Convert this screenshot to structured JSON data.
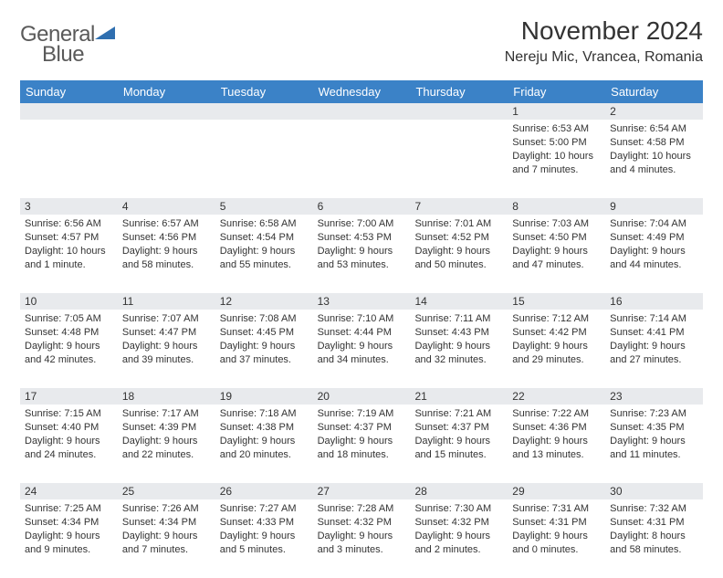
{
  "logo": {
    "word1": "General",
    "word2": "Blue",
    "tri_color": "#2f6fb0"
  },
  "header": {
    "month_title": "November 2024",
    "location": "Nereju Mic, Vrancea, Romania"
  },
  "colors": {
    "header_bg": "#3b82c7",
    "header_text": "#ffffff",
    "daynum_bg": "#e8eaed",
    "rule": "#7a8aa0",
    "text": "#333333"
  },
  "day_labels": [
    "Sunday",
    "Monday",
    "Tuesday",
    "Wednesday",
    "Thursday",
    "Friday",
    "Saturday"
  ],
  "weeks": [
    [
      {
        "n": "",
        "sr": "",
        "ss": "",
        "dl": ""
      },
      {
        "n": "",
        "sr": "",
        "ss": "",
        "dl": ""
      },
      {
        "n": "",
        "sr": "",
        "ss": "",
        "dl": ""
      },
      {
        "n": "",
        "sr": "",
        "ss": "",
        "dl": ""
      },
      {
        "n": "",
        "sr": "",
        "ss": "",
        "dl": ""
      },
      {
        "n": "1",
        "sr": "Sunrise: 6:53 AM",
        "ss": "Sunset: 5:00 PM",
        "dl": "Daylight: 10 hours and 7 minutes."
      },
      {
        "n": "2",
        "sr": "Sunrise: 6:54 AM",
        "ss": "Sunset: 4:58 PM",
        "dl": "Daylight: 10 hours and 4 minutes."
      }
    ],
    [
      {
        "n": "3",
        "sr": "Sunrise: 6:56 AM",
        "ss": "Sunset: 4:57 PM",
        "dl": "Daylight: 10 hours and 1 minute."
      },
      {
        "n": "4",
        "sr": "Sunrise: 6:57 AM",
        "ss": "Sunset: 4:56 PM",
        "dl": "Daylight: 9 hours and 58 minutes."
      },
      {
        "n": "5",
        "sr": "Sunrise: 6:58 AM",
        "ss": "Sunset: 4:54 PM",
        "dl": "Daylight: 9 hours and 55 minutes."
      },
      {
        "n": "6",
        "sr": "Sunrise: 7:00 AM",
        "ss": "Sunset: 4:53 PM",
        "dl": "Daylight: 9 hours and 53 minutes."
      },
      {
        "n": "7",
        "sr": "Sunrise: 7:01 AM",
        "ss": "Sunset: 4:52 PM",
        "dl": "Daylight: 9 hours and 50 minutes."
      },
      {
        "n": "8",
        "sr": "Sunrise: 7:03 AM",
        "ss": "Sunset: 4:50 PM",
        "dl": "Daylight: 9 hours and 47 minutes."
      },
      {
        "n": "9",
        "sr": "Sunrise: 7:04 AM",
        "ss": "Sunset: 4:49 PM",
        "dl": "Daylight: 9 hours and 44 minutes."
      }
    ],
    [
      {
        "n": "10",
        "sr": "Sunrise: 7:05 AM",
        "ss": "Sunset: 4:48 PM",
        "dl": "Daylight: 9 hours and 42 minutes."
      },
      {
        "n": "11",
        "sr": "Sunrise: 7:07 AM",
        "ss": "Sunset: 4:47 PM",
        "dl": "Daylight: 9 hours and 39 minutes."
      },
      {
        "n": "12",
        "sr": "Sunrise: 7:08 AM",
        "ss": "Sunset: 4:45 PM",
        "dl": "Daylight: 9 hours and 37 minutes."
      },
      {
        "n": "13",
        "sr": "Sunrise: 7:10 AM",
        "ss": "Sunset: 4:44 PM",
        "dl": "Daylight: 9 hours and 34 minutes."
      },
      {
        "n": "14",
        "sr": "Sunrise: 7:11 AM",
        "ss": "Sunset: 4:43 PM",
        "dl": "Daylight: 9 hours and 32 minutes."
      },
      {
        "n": "15",
        "sr": "Sunrise: 7:12 AM",
        "ss": "Sunset: 4:42 PM",
        "dl": "Daylight: 9 hours and 29 minutes."
      },
      {
        "n": "16",
        "sr": "Sunrise: 7:14 AM",
        "ss": "Sunset: 4:41 PM",
        "dl": "Daylight: 9 hours and 27 minutes."
      }
    ],
    [
      {
        "n": "17",
        "sr": "Sunrise: 7:15 AM",
        "ss": "Sunset: 4:40 PM",
        "dl": "Daylight: 9 hours and 24 minutes."
      },
      {
        "n": "18",
        "sr": "Sunrise: 7:17 AM",
        "ss": "Sunset: 4:39 PM",
        "dl": "Daylight: 9 hours and 22 minutes."
      },
      {
        "n": "19",
        "sr": "Sunrise: 7:18 AM",
        "ss": "Sunset: 4:38 PM",
        "dl": "Daylight: 9 hours and 20 minutes."
      },
      {
        "n": "20",
        "sr": "Sunrise: 7:19 AM",
        "ss": "Sunset: 4:37 PM",
        "dl": "Daylight: 9 hours and 18 minutes."
      },
      {
        "n": "21",
        "sr": "Sunrise: 7:21 AM",
        "ss": "Sunset: 4:37 PM",
        "dl": "Daylight: 9 hours and 15 minutes."
      },
      {
        "n": "22",
        "sr": "Sunrise: 7:22 AM",
        "ss": "Sunset: 4:36 PM",
        "dl": "Daylight: 9 hours and 13 minutes."
      },
      {
        "n": "23",
        "sr": "Sunrise: 7:23 AM",
        "ss": "Sunset: 4:35 PM",
        "dl": "Daylight: 9 hours and 11 minutes."
      }
    ],
    [
      {
        "n": "24",
        "sr": "Sunrise: 7:25 AM",
        "ss": "Sunset: 4:34 PM",
        "dl": "Daylight: 9 hours and 9 minutes."
      },
      {
        "n": "25",
        "sr": "Sunrise: 7:26 AM",
        "ss": "Sunset: 4:34 PM",
        "dl": "Daylight: 9 hours and 7 minutes."
      },
      {
        "n": "26",
        "sr": "Sunrise: 7:27 AM",
        "ss": "Sunset: 4:33 PM",
        "dl": "Daylight: 9 hours and 5 minutes."
      },
      {
        "n": "27",
        "sr": "Sunrise: 7:28 AM",
        "ss": "Sunset: 4:32 PM",
        "dl": "Daylight: 9 hours and 3 minutes."
      },
      {
        "n": "28",
        "sr": "Sunrise: 7:30 AM",
        "ss": "Sunset: 4:32 PM",
        "dl": "Daylight: 9 hours and 2 minutes."
      },
      {
        "n": "29",
        "sr": "Sunrise: 7:31 AM",
        "ss": "Sunset: 4:31 PM",
        "dl": "Daylight: 9 hours and 0 minutes."
      },
      {
        "n": "30",
        "sr": "Sunrise: 7:32 AM",
        "ss": "Sunset: 4:31 PM",
        "dl": "Daylight: 8 hours and 58 minutes."
      }
    ]
  ]
}
